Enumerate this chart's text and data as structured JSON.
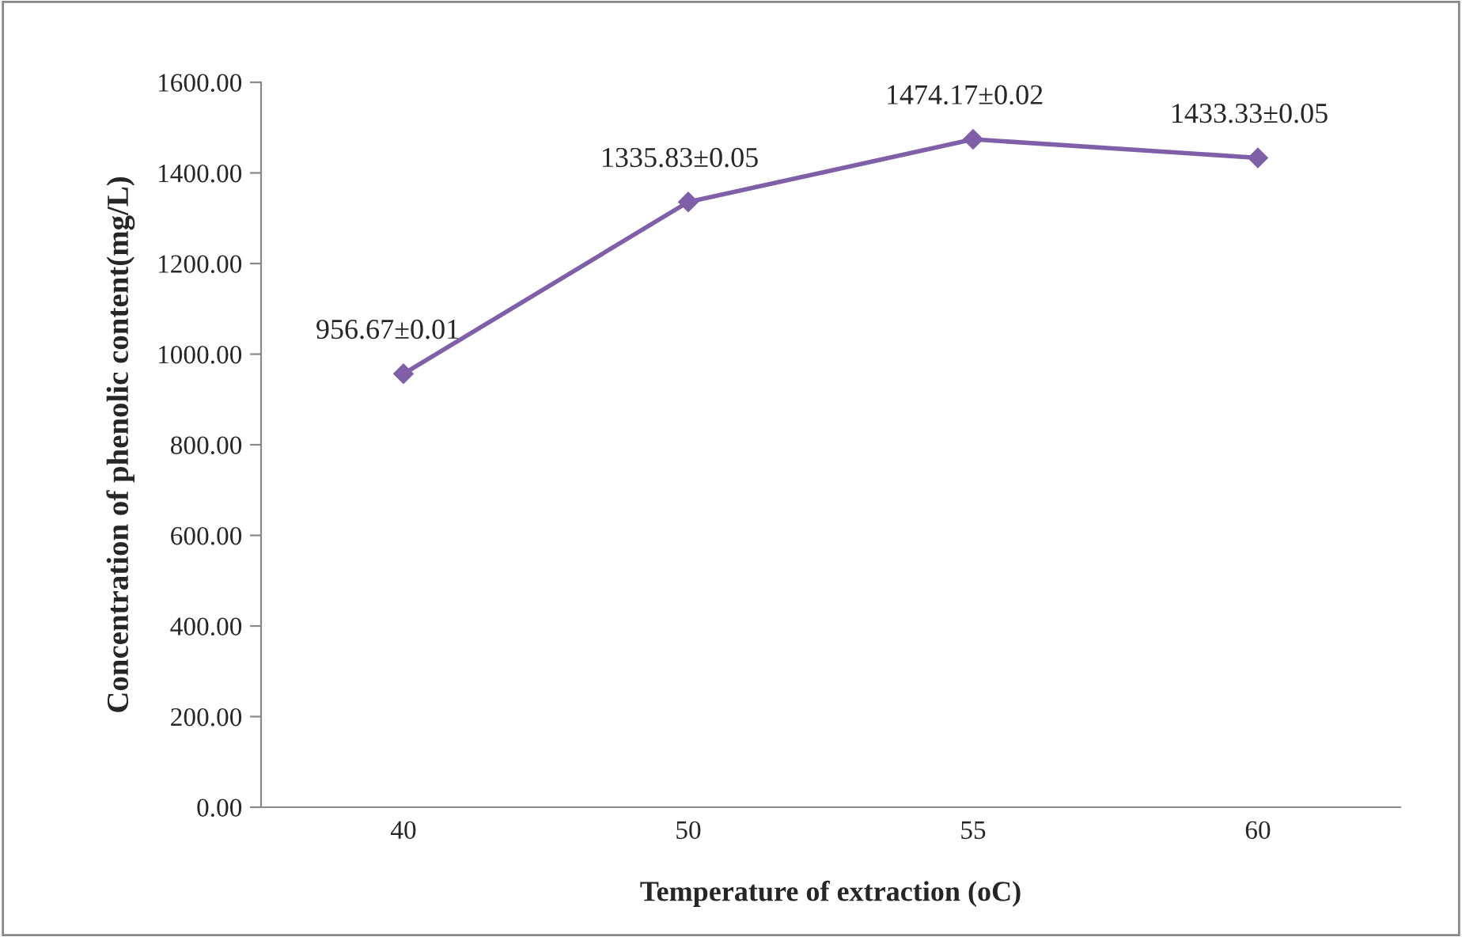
{
  "chart_data": {
    "type": "line",
    "xlabel": "Temperature of extraction (oC)",
    "ylabel": "Concentration of phenolic content(mg/L)",
    "categories": [
      "40",
      "50",
      "55",
      "60"
    ],
    "series": [
      {
        "color": "#7f60a8",
        "values": [
          956.67,
          1335.83,
          1474.17,
          1433.33
        ],
        "value_labels": [
          "956.67±0.01",
          "1335.83±0.05",
          "1474.17±0.02",
          "1433.33±0.05"
        ]
      }
    ],
    "ylim": [
      0,
      1600
    ],
    "yticks": [
      {
        "value": 0,
        "label": "0.00"
      },
      {
        "value": 200,
        "label": "200.00"
      },
      {
        "value": 400,
        "label": "400.00"
      },
      {
        "value": 600,
        "label": "600.00"
      },
      {
        "value": 800,
        "label": "800.00"
      },
      {
        "value": 1000,
        "label": "1000.00"
      },
      {
        "value": 1200,
        "label": "1200.00"
      },
      {
        "value": 1400,
        "label": "1400.00"
      },
      {
        "value": 1600,
        "label": "1600.00"
      }
    ],
    "grid": false,
    "legend": false,
    "marker": "diamond",
    "line_style": "solid"
  }
}
